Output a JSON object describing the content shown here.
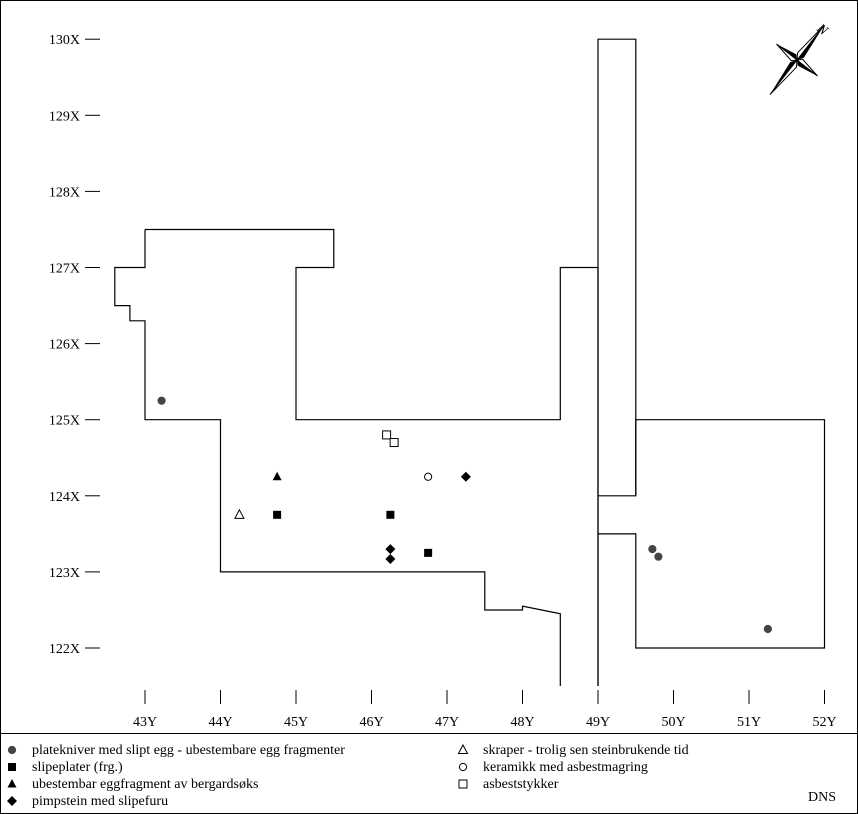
{
  "map": {
    "credit": "DNS",
    "north_arrow": {
      "icon": "north-arrow-icon",
      "label": "N"
    },
    "x_ticks": [
      {
        "value": 122,
        "label": "122X"
      },
      {
        "value": 123,
        "label": "123X"
      },
      {
        "value": 124,
        "label": "124X"
      },
      {
        "value": 125,
        "label": "125X"
      },
      {
        "value": 126,
        "label": "126X"
      },
      {
        "value": 127,
        "label": "127X"
      },
      {
        "value": 128,
        "label": "128X"
      },
      {
        "value": 129,
        "label": "129X"
      },
      {
        "value": 130,
        "label": "130X"
      }
    ],
    "y_ticks": [
      {
        "value": 43,
        "label": "43Y"
      },
      {
        "value": 44,
        "label": "44Y"
      },
      {
        "value": 45,
        "label": "45Y"
      },
      {
        "value": 46,
        "label": "46Y"
      },
      {
        "value": 47,
        "label": "47Y"
      },
      {
        "value": 48,
        "label": "48Y"
      },
      {
        "value": 49,
        "label": "49Y"
      },
      {
        "value": 50,
        "label": "50Y"
      },
      {
        "value": 51,
        "label": "51Y"
      },
      {
        "value": 52,
        "label": "52Y"
      }
    ],
    "legend": [
      {
        "key": "circle_filled",
        "symbol": "●",
        "label": "platekniver med slipt egg - ubestembare egg fragmenter"
      },
      {
        "key": "square_filled",
        "symbol": "■",
        "label": "slipeplater (frg.)"
      },
      {
        "key": "triangle_filled",
        "symbol": "▲",
        "label": "ubestembar eggfragment av bergardsøks"
      },
      {
        "key": "diamond_filled",
        "symbol": "◆",
        "label": "pimpstein med slipefuru"
      },
      {
        "key": "triangle_open",
        "symbol": "△",
        "label": "skraper - trolig sen steinbrukende tid"
      },
      {
        "key": "circle_open",
        "symbol": "○",
        "label": "keramikk med asbestmagring"
      },
      {
        "key": "square_open",
        "symbol": "□",
        "label": "asbeststykker"
      }
    ],
    "finds": [
      {
        "type": "circle_filled",
        "y": 43.22,
        "x": 125.25
      },
      {
        "type": "circle_filled",
        "y": 49.72,
        "x": 123.3
      },
      {
        "type": "circle_filled",
        "y": 49.8,
        "x": 123.2
      },
      {
        "type": "circle_filled",
        "y": 51.25,
        "x": 122.25
      },
      {
        "type": "square_filled",
        "y": 44.75,
        "x": 123.75
      },
      {
        "type": "square_filled",
        "y": 46.25,
        "x": 123.75
      },
      {
        "type": "square_filled",
        "y": 46.75,
        "x": 123.25
      },
      {
        "type": "triangle_filled",
        "y": 44.75,
        "x": 124.25
      },
      {
        "type": "diamond_filled",
        "y": 47.25,
        "x": 124.25
      },
      {
        "type": "diamond_filled",
        "y": 46.25,
        "x": 123.3
      },
      {
        "type": "diamond_filled",
        "y": 46.25,
        "x": 123.17
      },
      {
        "type": "triangle_open",
        "y": 44.25,
        "x": 123.75
      },
      {
        "type": "circle_open",
        "y": 46.75,
        "x": 124.25
      },
      {
        "type": "square_open",
        "y": 46.2,
        "x": 124.8
      },
      {
        "type": "square_open",
        "y": 46.3,
        "x": 124.7
      }
    ],
    "excavation_outlines": [
      {
        "name": "main-trench",
        "points": [
          [
            43,
            127.5
          ],
          [
            45.5,
            127.5
          ],
          [
            45.5,
            127
          ],
          [
            45,
            127
          ],
          [
            45,
            125
          ],
          [
            48.5,
            125
          ],
          [
            48.5,
            127
          ],
          [
            49,
            127
          ],
          [
            49,
            121.5
          ]
        ]
      },
      {
        "name": "west-trench",
        "points": [
          [
            43,
            127.5
          ],
          [
            43,
            127
          ],
          [
            42.6,
            127
          ],
          [
            42.6,
            126.5
          ],
          [
            42.8,
            126.5
          ],
          [
            42.8,
            126.3
          ],
          [
            43,
            126.3
          ],
          [
            43,
            125
          ],
          [
            44,
            125
          ],
          [
            44,
            123
          ],
          [
            47.5,
            123
          ],
          [
            47.5,
            122.5
          ],
          [
            48,
            122.5
          ],
          [
            48,
            122.55
          ],
          [
            48.5,
            122.45
          ],
          [
            48.5,
            121.5
          ]
        ]
      },
      {
        "name": "north-strip",
        "points": [
          [
            49,
            121.5
          ],
          [
            49,
            130
          ],
          [
            49.5,
            130
          ],
          [
            49.5,
            127
          ],
          [
            49.5,
            124
          ],
          [
            49,
            124
          ]
        ]
      },
      {
        "name": "east-trench",
        "points": [
          [
            49,
            123.5
          ],
          [
            49.5,
            123.5
          ],
          [
            49.5,
            122
          ],
          [
            52,
            122
          ],
          [
            52,
            125
          ],
          [
            49.5,
            125
          ],
          [
            49.5,
            124
          ]
        ]
      }
    ]
  }
}
